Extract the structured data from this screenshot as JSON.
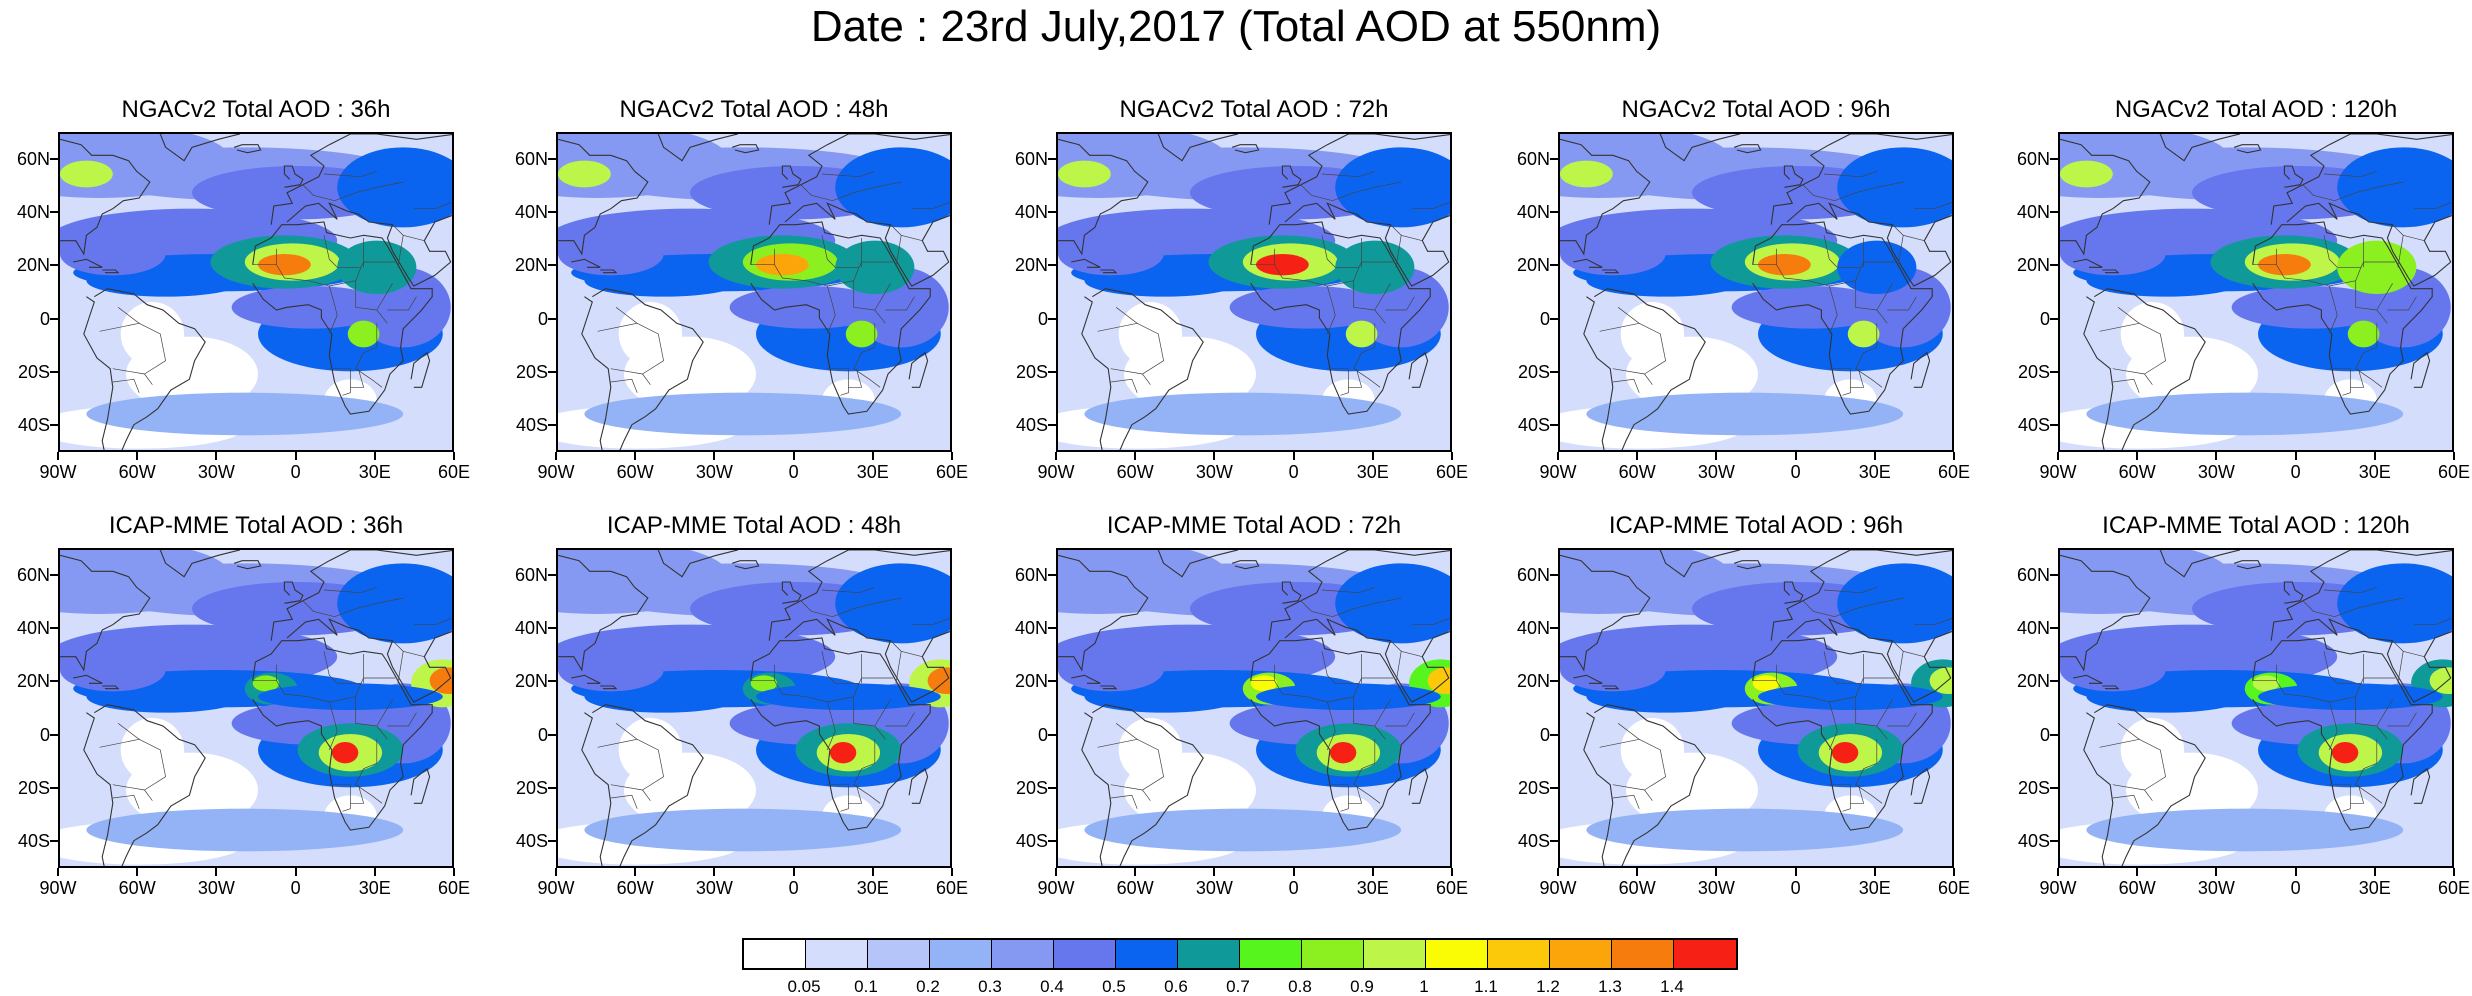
{
  "title": "Date : 23rd July,2017 (Total AOD at 550nm)",
  "panels": [
    {
      "title": "NGACv2 Total AOD : 36h",
      "row": 0,
      "col": 0,
      "dust_level": 1.3,
      "smoke_level": 0.8,
      "arabia_level": 0.6
    },
    {
      "title": "NGACv2 Total AOD : 48h",
      "row": 0,
      "col": 1,
      "dust_level": 1.2,
      "smoke_level": 0.8,
      "arabia_level": 0.6
    },
    {
      "title": "NGACv2 Total AOD : 72h",
      "row": 0,
      "col": 2,
      "dust_level": 1.4,
      "smoke_level": 0.9,
      "arabia_level": 0.6
    },
    {
      "title": "NGACv2 Total AOD : 96h",
      "row": 0,
      "col": 3,
      "dust_level": 1.3,
      "smoke_level": 0.9,
      "arabia_level": 0.5
    },
    {
      "title": "NGACv2 Total AOD : 120h",
      "row": 0,
      "col": 4,
      "dust_level": 1.3,
      "smoke_level": 0.8,
      "arabia_level": 0.8
    },
    {
      "title": "ICAP-MME Total AOD : 36h",
      "row": 1,
      "col": 0,
      "dust_level": 0.8,
      "smoke_level": 1.4,
      "arabia_level": 1.3
    },
    {
      "title": "ICAP-MME Total AOD : 48h",
      "row": 1,
      "col": 1,
      "dust_level": 0.8,
      "smoke_level": 1.4,
      "arabia_level": 1.3
    },
    {
      "title": "ICAP-MME Total AOD : 72h",
      "row": 1,
      "col": 2,
      "dust_level": 1.0,
      "smoke_level": 1.4,
      "arabia_level": 1.1
    },
    {
      "title": "ICAP-MME Total AOD : 96h",
      "row": 1,
      "col": 3,
      "dust_level": 1.0,
      "smoke_level": 1.4,
      "arabia_level": 0.9
    },
    {
      "title": "ICAP-MME Total AOD : 120h",
      "row": 1,
      "col": 4,
      "dust_level": 0.9,
      "smoke_level": 1.4,
      "arabia_level": 0.9
    }
  ],
  "lat_ticks": [
    "60N",
    "40N",
    "20N",
    "0",
    "20S",
    "40S"
  ],
  "lat_values": [
    60,
    40,
    20,
    0,
    -20,
    -40
  ],
  "lon_ticks": [
    "90W",
    "60W",
    "30W",
    "0",
    "30E",
    "60E"
  ],
  "lon_values": [
    -90,
    -60,
    -30,
    0,
    30,
    60
  ],
  "map_extent": {
    "lon": [
      -90,
      60
    ],
    "lat": [
      -50,
      70
    ]
  },
  "colorbar": {
    "labels": [
      "0.05",
      "0.1",
      "0.2",
      "0.3",
      "0.4",
      "0.5",
      "0.6",
      "0.7",
      "0.8",
      "0.9",
      "1",
      "1.1",
      "1.2",
      "1.3",
      "1.4"
    ],
    "colors": [
      "#ffffff",
      "#d4defc",
      "#b5c5f9",
      "#94b3f7",
      "#8599f2",
      "#6677ee",
      "#0b64f0",
      "#0f9a99",
      "#56f51d",
      "#8cf020",
      "#bdf549",
      "#fafc05",
      "#fcc90a",
      "#fca50b",
      "#f77c0e",
      "#f72014"
    ]
  }
}
